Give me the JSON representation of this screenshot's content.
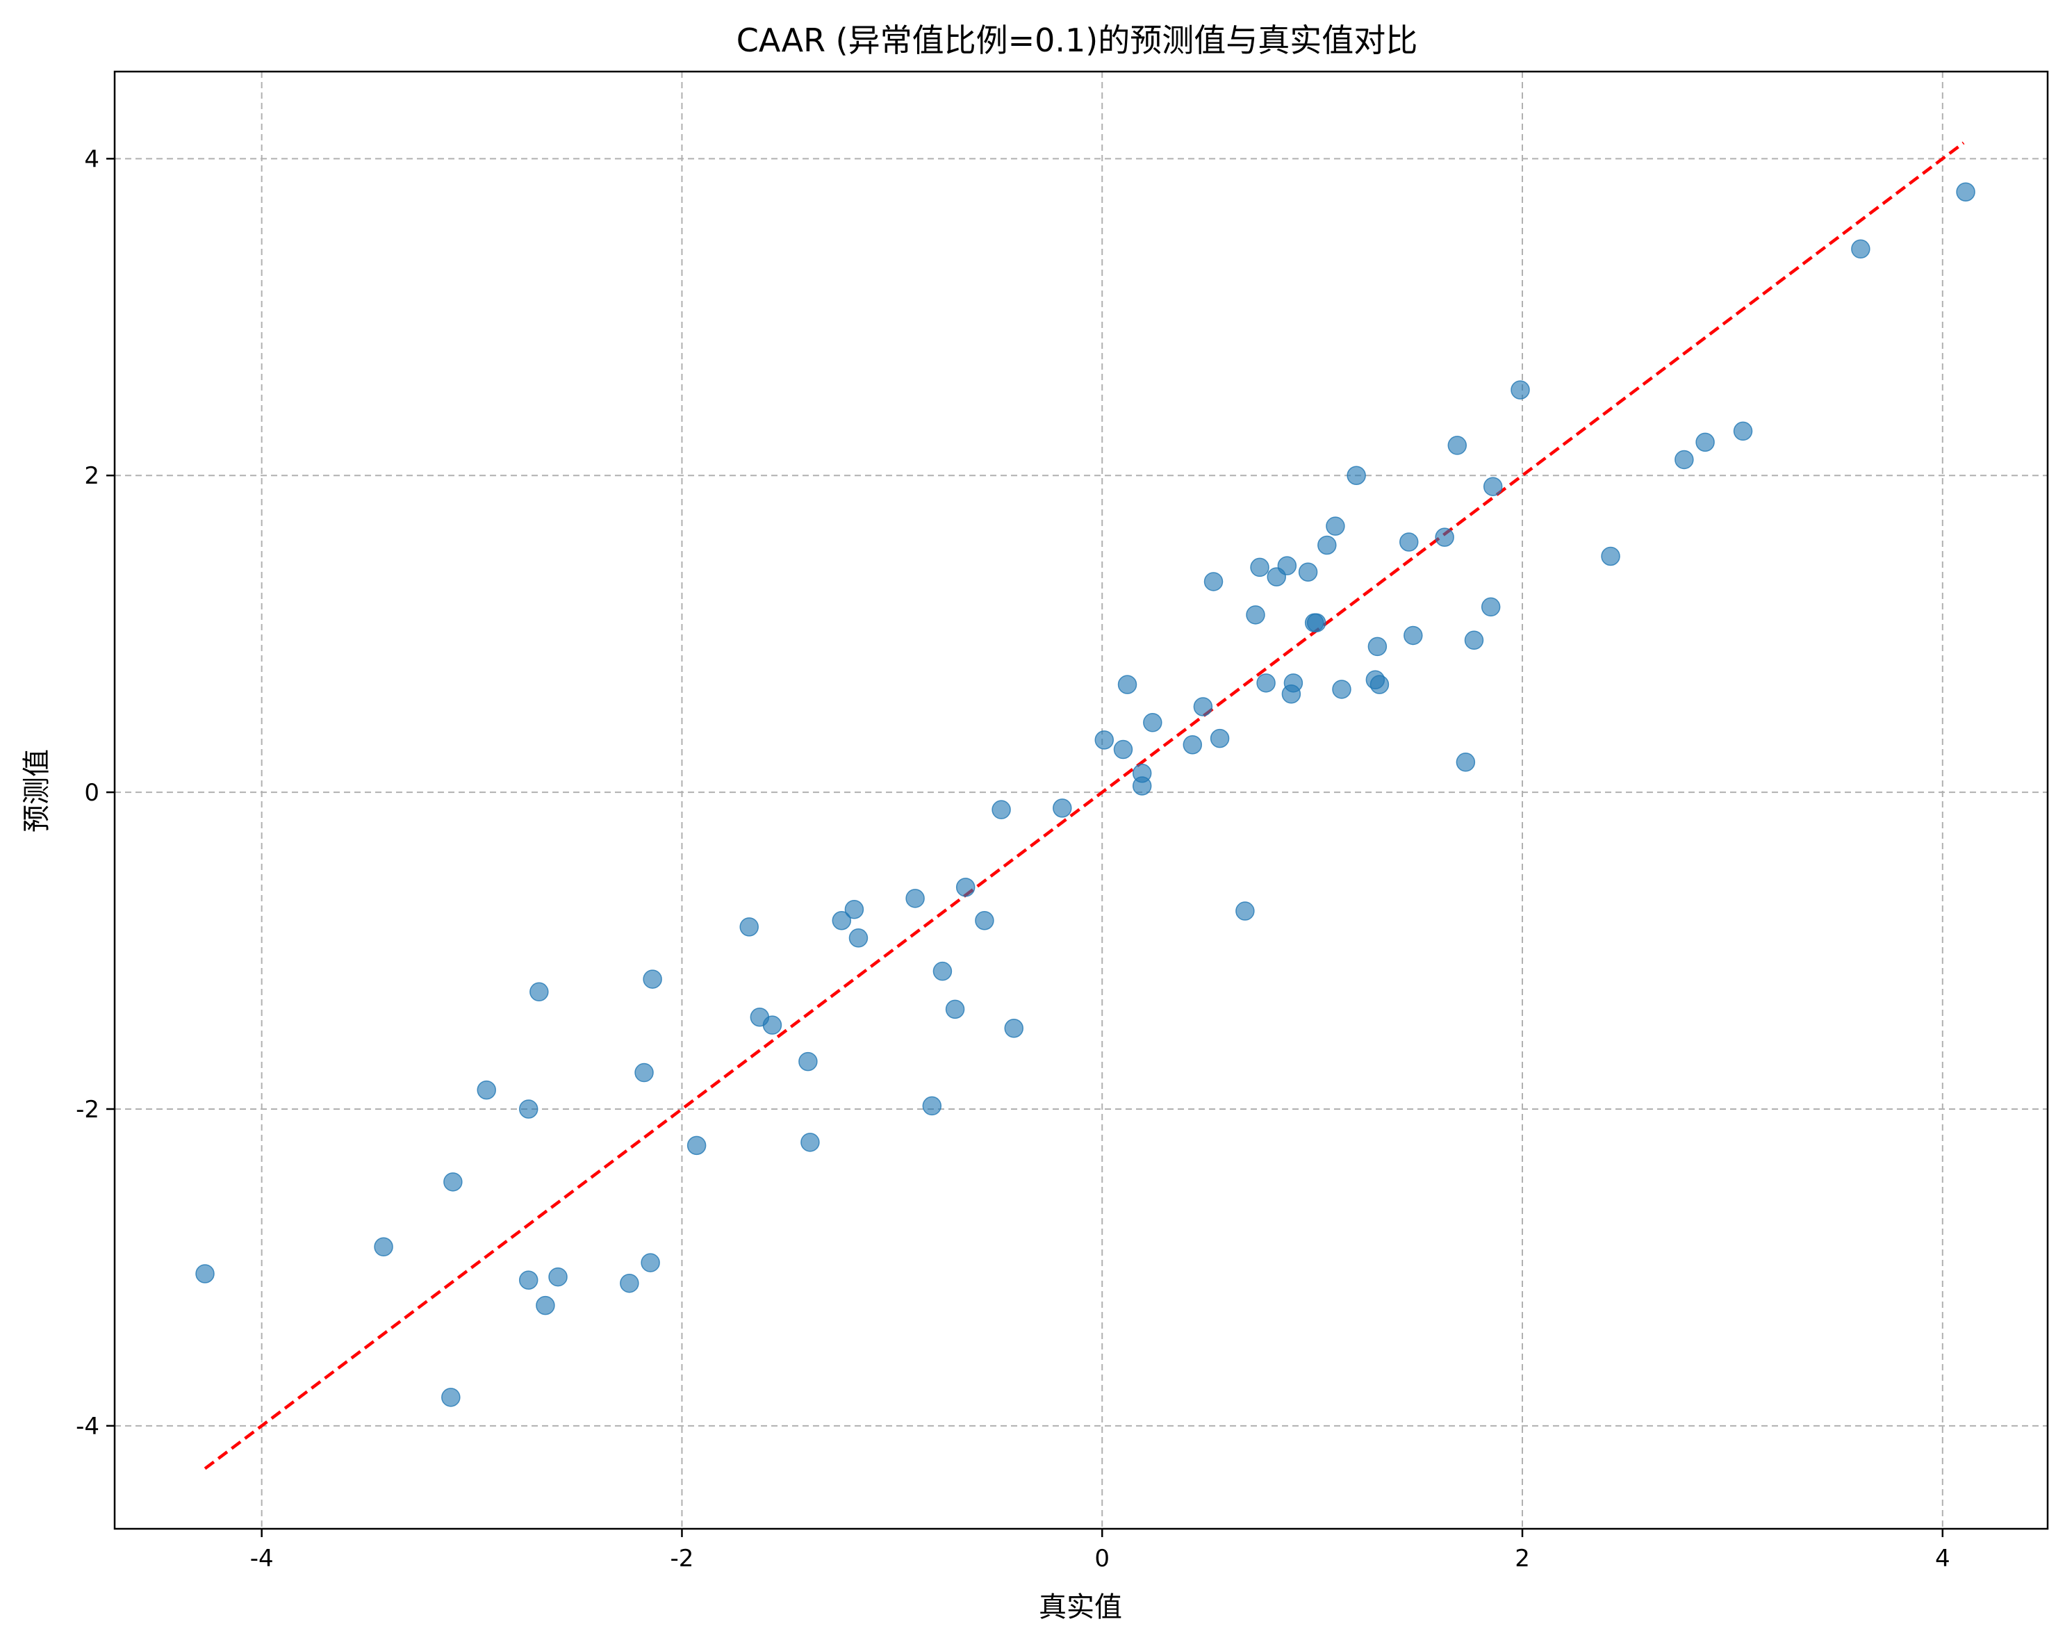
{
  "chart_data": {
    "type": "scatter",
    "title": "CAAR (异常值比例=0.1)的预测值与真实值对比",
    "xlabel": "真实值",
    "ylabel": "预测值",
    "xlim": [
      -4.7,
      4.5
    ],
    "ylim": [
      -4.65,
      4.55
    ],
    "xticks": [
      -4,
      -2,
      0,
      2,
      4
    ],
    "yticks": [
      -4,
      -2,
      0,
      2,
      4
    ],
    "grid": true,
    "point_color": "#1f77b4",
    "reference_line": {
      "color": "#ff0000",
      "style": "dashed",
      "x": [
        -4.27,
        4.1
      ],
      "y": [
        -4.27,
        4.1
      ]
    },
    "points": [
      {
        "x": -4.27,
        "y": -3.04
      },
      {
        "x": -3.42,
        "y": -2.87
      },
      {
        "x": -3.1,
        "y": -3.82
      },
      {
        "x": -3.09,
        "y": -2.46
      },
      {
        "x": -2.93,
        "y": -1.88
      },
      {
        "x": -2.73,
        "y": -2.0
      },
      {
        "x": -2.73,
        "y": -3.08
      },
      {
        "x": -2.68,
        "y": -1.26
      },
      {
        "x": -2.65,
        "y": -3.24
      },
      {
        "x": -2.59,
        "y": -3.06
      },
      {
        "x": -2.25,
        "y": -3.1
      },
      {
        "x": -2.18,
        "y": -1.77
      },
      {
        "x": -2.15,
        "y": -2.97
      },
      {
        "x": -2.14,
        "y": -1.18
      },
      {
        "x": -1.93,
        "y": -2.23
      },
      {
        "x": -1.68,
        "y": -0.85
      },
      {
        "x": -1.63,
        "y": -1.42
      },
      {
        "x": -1.57,
        "y": -1.47
      },
      {
        "x": -1.4,
        "y": -1.7
      },
      {
        "x": -1.39,
        "y": -2.21
      },
      {
        "x": -1.24,
        "y": -0.81
      },
      {
        "x": -1.18,
        "y": -0.74
      },
      {
        "x": -1.16,
        "y": -0.92
      },
      {
        "x": -0.89,
        "y": -0.67
      },
      {
        "x": -0.81,
        "y": -1.98
      },
      {
        "x": -0.76,
        "y": -1.13
      },
      {
        "x": -0.7,
        "y": -1.37
      },
      {
        "x": -0.65,
        "y": -0.6
      },
      {
        "x": -0.56,
        "y": -0.81
      },
      {
        "x": -0.48,
        "y": -0.11
      },
      {
        "x": -0.42,
        "y": -1.49
      },
      {
        "x": -0.19,
        "y": -0.1
      },
      {
        "x": 0.01,
        "y": 0.33
      },
      {
        "x": 0.1,
        "y": 0.27
      },
      {
        "x": 0.12,
        "y": 0.68
      },
      {
        "x": 0.19,
        "y": 0.04
      },
      {
        "x": 0.19,
        "y": 0.12
      },
      {
        "x": 0.24,
        "y": 0.44
      },
      {
        "x": 0.43,
        "y": 0.3
      },
      {
        "x": 0.48,
        "y": 0.54
      },
      {
        "x": 0.53,
        "y": 1.33
      },
      {
        "x": 0.56,
        "y": 0.34
      },
      {
        "x": 0.68,
        "y": -0.75
      },
      {
        "x": 0.73,
        "y": 1.12
      },
      {
        "x": 0.75,
        "y": 1.42
      },
      {
        "x": 0.78,
        "y": 0.69
      },
      {
        "x": 0.83,
        "y": 1.36
      },
      {
        "x": 0.88,
        "y": 1.43
      },
      {
        "x": 0.9,
        "y": 0.62
      },
      {
        "x": 0.91,
        "y": 0.69
      },
      {
        "x": 0.98,
        "y": 1.39
      },
      {
        "x": 1.01,
        "y": 1.07
      },
      {
        "x": 1.02,
        "y": 1.07
      },
      {
        "x": 1.07,
        "y": 1.56
      },
      {
        "x": 1.11,
        "y": 1.68
      },
      {
        "x": 1.14,
        "y": 0.65
      },
      {
        "x": 1.21,
        "y": 2.0
      },
      {
        "x": 1.3,
        "y": 0.71
      },
      {
        "x": 1.31,
        "y": 0.92
      },
      {
        "x": 1.32,
        "y": 0.68
      },
      {
        "x": 1.46,
        "y": 1.58
      },
      {
        "x": 1.48,
        "y": 0.99
      },
      {
        "x": 1.63,
        "y": 1.61
      },
      {
        "x": 1.69,
        "y": 2.19
      },
      {
        "x": 1.73,
        "y": 0.19
      },
      {
        "x": 1.77,
        "y": 0.96
      },
      {
        "x": 1.85,
        "y": 1.17
      },
      {
        "x": 1.86,
        "y": 1.93
      },
      {
        "x": 1.99,
        "y": 2.54
      },
      {
        "x": 2.42,
        "y": 1.49
      },
      {
        "x": 2.77,
        "y": 2.1
      },
      {
        "x": 2.87,
        "y": 2.21
      },
      {
        "x": 3.05,
        "y": 2.28
      },
      {
        "x": 3.61,
        "y": 3.43
      },
      {
        "x": 4.11,
        "y": 3.79
      }
    ]
  }
}
